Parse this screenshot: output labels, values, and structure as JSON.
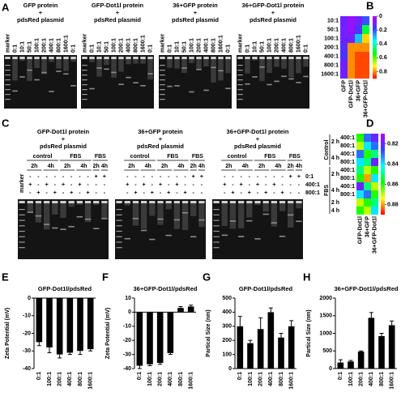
{
  "panel_labels": [
    "A",
    "B",
    "C",
    "D",
    "E",
    "F",
    "G",
    "H"
  ],
  "gels_a": [
    {
      "title": [
        "GFP protein",
        "+",
        "pdsRed plasmid"
      ],
      "lanes": [
        "marker",
        "0:1",
        "10:1",
        "50:1",
        "100:1",
        "200:1",
        "400:1",
        "800:1",
        "1600:1",
        "0:1"
      ]
    },
    {
      "title": [
        "GFP-Dot1l protein",
        "+",
        "pdsRed plasmid"
      ],
      "lanes": [
        "marker",
        "0:1",
        "10:1",
        "50:1",
        "100:1",
        "200:1",
        "400:1",
        "800:1",
        "1600:1",
        "0:1"
      ]
    },
    {
      "title": [
        "36+GFP protein",
        "+",
        "pdsRed plasmid"
      ],
      "lanes": [
        "marker",
        "0:1",
        "10:1",
        "50:1",
        "100:1",
        "200:1",
        "400:1",
        "800:1",
        "1600:1",
        "0:1"
      ]
    },
    {
      "title": [
        "36+GFP-Dot1l protein",
        "+",
        "pdsRed plasmid"
      ],
      "lanes": [
        "marker",
        "0:1",
        "10:1",
        "50:1",
        "100:1",
        "200:1",
        "400:1",
        "800:1",
        "1600:1",
        "0:1"
      ]
    }
  ],
  "gels_c": {
    "marker_label": "marker",
    "gels": [
      {
        "title": [
          "GFP-Dot1l protein",
          "+",
          "pdsRed plasmid"
        ]
      },
      {
        "title": [
          "36+GFP protein",
          "+",
          "pdsRed plasmid"
        ]
      },
      {
        "title": [
          "36+GFP-Dot1l protein",
          "+",
          "pdsRed plasmid"
        ]
      }
    ],
    "conditions": [
      "control",
      "FBS",
      "FBS"
    ],
    "times": [
      "2h",
      "4h",
      "2h",
      "4h",
      "2h",
      "4h"
    ],
    "sign_rows": [
      {
        "label": "0:1",
        "signs": [
          "-",
          "-",
          "-",
          "-",
          "-",
          "-",
          "-",
          "-",
          "+",
          "+"
        ]
      },
      {
        "label": "400:1",
        "signs": [
          "+",
          "-",
          "+",
          "-",
          "+",
          "-",
          "+",
          "-",
          "-",
          "-"
        ]
      },
      {
        "label": "800:1",
        "signs": [
          "-",
          "+",
          "-",
          "+",
          "-",
          "+",
          "-",
          "+",
          "-",
          "-"
        ]
      }
    ]
  },
  "chart_data": [
    {
      "type": "heatmap",
      "rows": [
        "10:1",
        "50:1",
        "100:1",
        "200:1",
        "400:1",
        "800:1",
        "1600:1"
      ],
      "columns": [
        "GFP",
        "GFP-Dot1l",
        "36+GFP",
        "36+GFP-Dot1l"
      ],
      "values": [
        [
          0.1,
          0.05,
          0.1,
          0.2
        ],
        [
          0.1,
          0.05,
          0.15,
          0.5
        ],
        [
          0.1,
          0.1,
          0.3,
          0.75
        ],
        [
          0.15,
          0.8,
          0.8,
          0.8
        ],
        [
          0.15,
          0.8,
          0.85,
          0.85
        ],
        [
          0.1,
          0.8,
          0.85,
          0.85
        ],
        [
          0.1,
          0.8,
          0.85,
          0.85
        ]
      ],
      "zlim": [
        0,
        0.9
      ],
      "zticks": [
        0,
        0.2,
        0.4,
        0.6,
        0.8
      ],
      "colors": [
        "#b400ff",
        "#3c3cff",
        "#00ffff",
        "#00ff00",
        "#ffff00",
        "#ff0000"
      ]
    },
    {
      "type": "heatmap",
      "row_conditions": [
        "Control",
        "FBS"
      ],
      "row_times": [
        "2 h",
        "4 h",
        "2 h",
        "4 h",
        "2 h",
        "4 h"
      ],
      "rows": [
        "400:1",
        "800:1",
        "400:1",
        "800:1",
        "400:1",
        "800:1",
        "400:1",
        "800:1",
        null,
        null
      ],
      "columns": [
        "GFP-Dot1l",
        "36+GFP",
        "36+GFP-Dot1l"
      ],
      "values": [
        [
          0.86,
          0.83,
          0.82
        ],
        [
          0.87,
          0.84,
          0.83
        ],
        [
          0.83,
          0.86,
          0.85
        ],
        [
          0.84,
          0.85,
          0.82
        ],
        [
          0.85,
          0.87,
          0.86
        ],
        [
          0.86,
          0.88,
          0.84
        ],
        [
          0.82,
          0.85,
          0.87
        ],
        [
          0.84,
          0.83,
          0.86
        ],
        [
          0.87,
          0.86,
          0.85
        ],
        [
          0.86,
          0.87,
          0.84
        ]
      ],
      "zlim": [
        0.81,
        0.89
      ],
      "zticks": [
        0.82,
        0.84,
        0.86,
        0.88
      ],
      "colors": [
        "#b400ff",
        "#3c3cff",
        "#00ffff",
        "#00ff00",
        "#ffff00",
        "#ff0000"
      ]
    },
    {
      "type": "bar",
      "title": "GFP-Dot1l/pdsRed",
      "y_label": "Zeta Potential (mV)",
      "categories": [
        "0:1",
        "100:1",
        "200:1",
        "400:1",
        "800:1",
        "1600:1"
      ],
      "values": [
        -25,
        -28,
        -32,
        -31,
        -30,
        -29
      ],
      "errors": [
        2,
        3,
        2,
        1,
        2,
        1
      ],
      "color": "#000000",
      "ylim": [
        -40,
        0
      ],
      "yticks": [
        -40,
        -30,
        -20,
        -10,
        0
      ]
    },
    {
      "type": "bar",
      "title": "36+GFP-Dot1l/pdsRed",
      "y_label": "Zeta Potential (mV)",
      "categories": [
        "0:1",
        "100:1",
        "200:1",
        "400:1",
        "800:1",
        "1600:1"
      ],
      "values": [
        -38,
        -37,
        -36,
        -29,
        3,
        4
      ],
      "errors": [
        2,
        1,
        1,
        1,
        1,
        1
      ],
      "color": "#000000",
      "ylim": [
        -40,
        10
      ],
      "yticks": [
        -40,
        -30,
        -20,
        -10,
        0,
        10
      ]
    },
    {
      "type": "bar",
      "title": "GFP-Dot1l/pdsRed",
      "y_label": "Partical Size (nm)",
      "categories": [
        "0:1",
        "100:1",
        "200:1",
        "400:1",
        "800:1",
        "1600:1"
      ],
      "values": [
        300,
        180,
        280,
        400,
        220,
        300
      ],
      "errors": [
        70,
        20,
        80,
        30,
        30,
        40
      ],
      "color": "#000000",
      "ylim": [
        0,
        500
      ],
      "yticks": [
        0,
        100,
        200,
        300,
        400,
        500
      ]
    },
    {
      "type": "bar",
      "title": "36+GFP-Dot1l/pdsRed",
      "y_label": "Partical Size (nm)",
      "categories": [
        "0:1",
        "100:1",
        "200:1",
        "400:1",
        "800:1",
        "1600:1"
      ],
      "values": [
        170,
        200,
        480,
        1440,
        920,
        1230
      ],
      "errors": [
        80,
        30,
        20,
        150,
        80,
        120
      ],
      "color": "#000000",
      "ylim": [
        0,
        2000
      ],
      "yticks": [
        0,
        500,
        1000,
        1500,
        2000
      ]
    }
  ]
}
